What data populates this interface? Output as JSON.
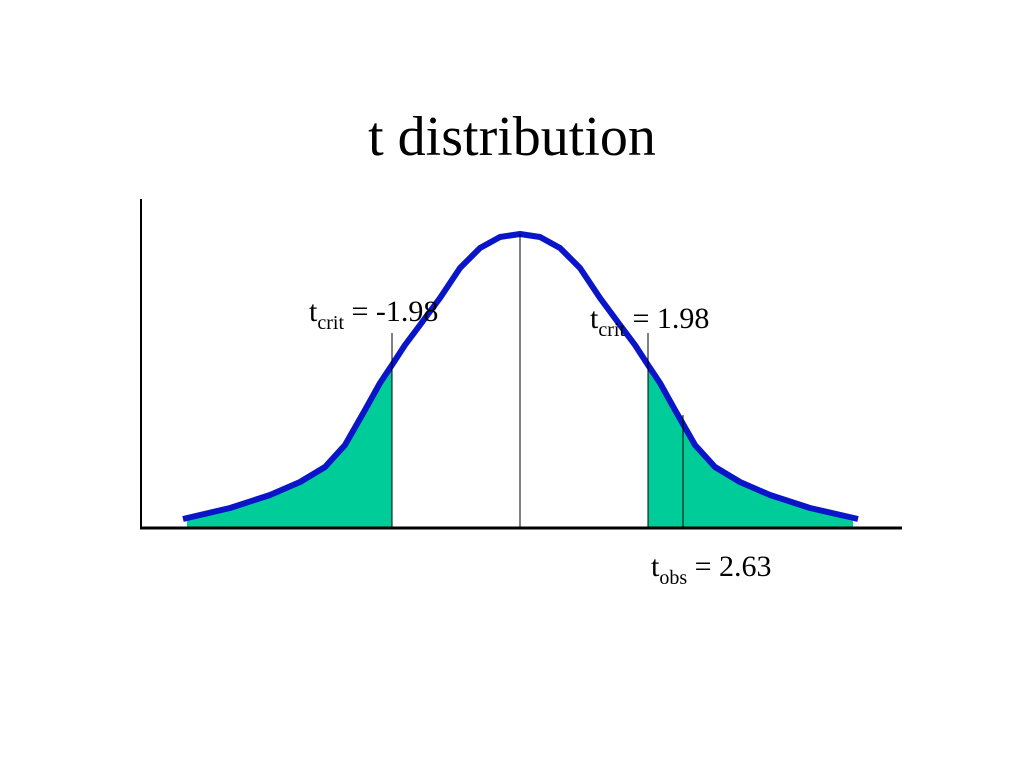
{
  "title": "t distribution",
  "labels": [
    {
      "base": "t",
      "sub": "crit",
      "rest": " = -1.98"
    },
    {
      "base": "t",
      "sub": "crit",
      "rest": " = 1.98"
    },
    {
      "base": "t",
      "sub": "obs",
      "rest": " = 2.63"
    }
  ]
}
